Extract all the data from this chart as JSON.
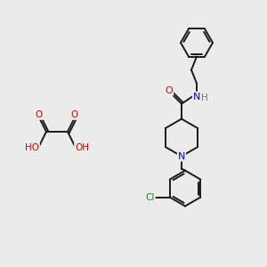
{
  "background_color": "#ebebeb",
  "bond_color": "#1a1a1a",
  "atom_colors": {
    "O": "#dd0000",
    "N": "#0000cc",
    "Cl": "#009900",
    "H": "#777777",
    "C": "#1a1a1a"
  },
  "figsize": [
    3.0,
    3.0
  ],
  "dpi": 100
}
